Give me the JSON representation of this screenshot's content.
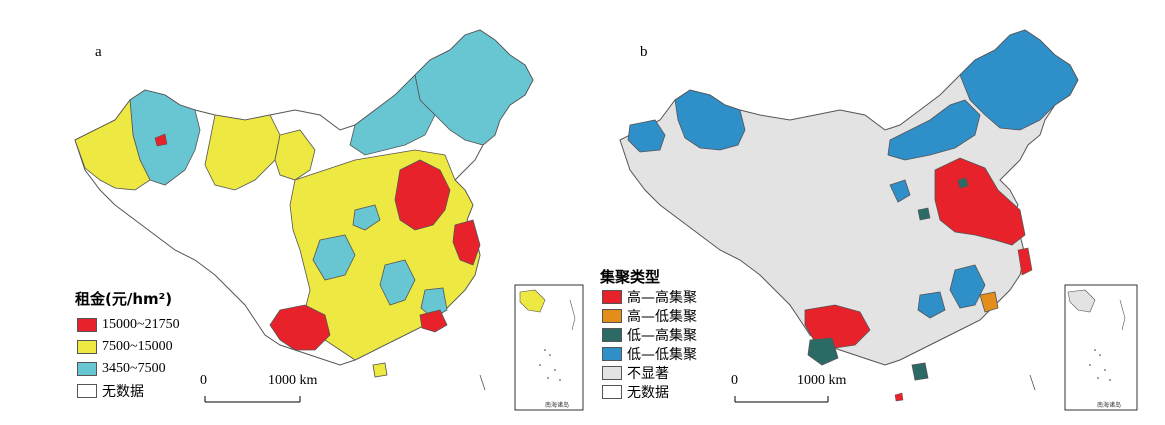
{
  "panel_a": {
    "label": "a",
    "legend_title": "租金(元/hm²)",
    "legend": [
      {
        "label": "15000~21750",
        "color": "#e8222b"
      },
      {
        "label": "7500~15000",
        "color": "#eee843"
      },
      {
        "label": "3450~7500",
        "color": "#68c6d2"
      },
      {
        "label": "无数据",
        "color": "#ffffff"
      }
    ],
    "scale_start": "0",
    "scale_end": "1000 km",
    "inset_caption": "南海诸岛"
  },
  "panel_b": {
    "label": "b",
    "legend_title": "集聚类型",
    "legend": [
      {
        "label": "高—高集聚",
        "color": "#e8222b"
      },
      {
        "label": "高—低集聚",
        "color": "#e38e1a"
      },
      {
        "label": "低—高集聚",
        "color": "#2c6a65"
      },
      {
        "label": "低—低集聚",
        "color": "#2e8fc9"
      },
      {
        "label": "不显著",
        "color": "#e3e3e3"
      },
      {
        "label": "无数据",
        "color": "#ffffff"
      }
    ],
    "scale_start": "0",
    "scale_end": "1000 km",
    "inset_caption": "南海诸岛"
  },
  "colors": {
    "map_outline": "#555555",
    "high": "#e8222b",
    "mid": "#eee843",
    "low": "#68c6d2",
    "hh": "#e8222b",
    "hl": "#e38e1a",
    "lh": "#2c6a65",
    "ll": "#2e8fc9",
    "ns": "#e3e3e3"
  }
}
